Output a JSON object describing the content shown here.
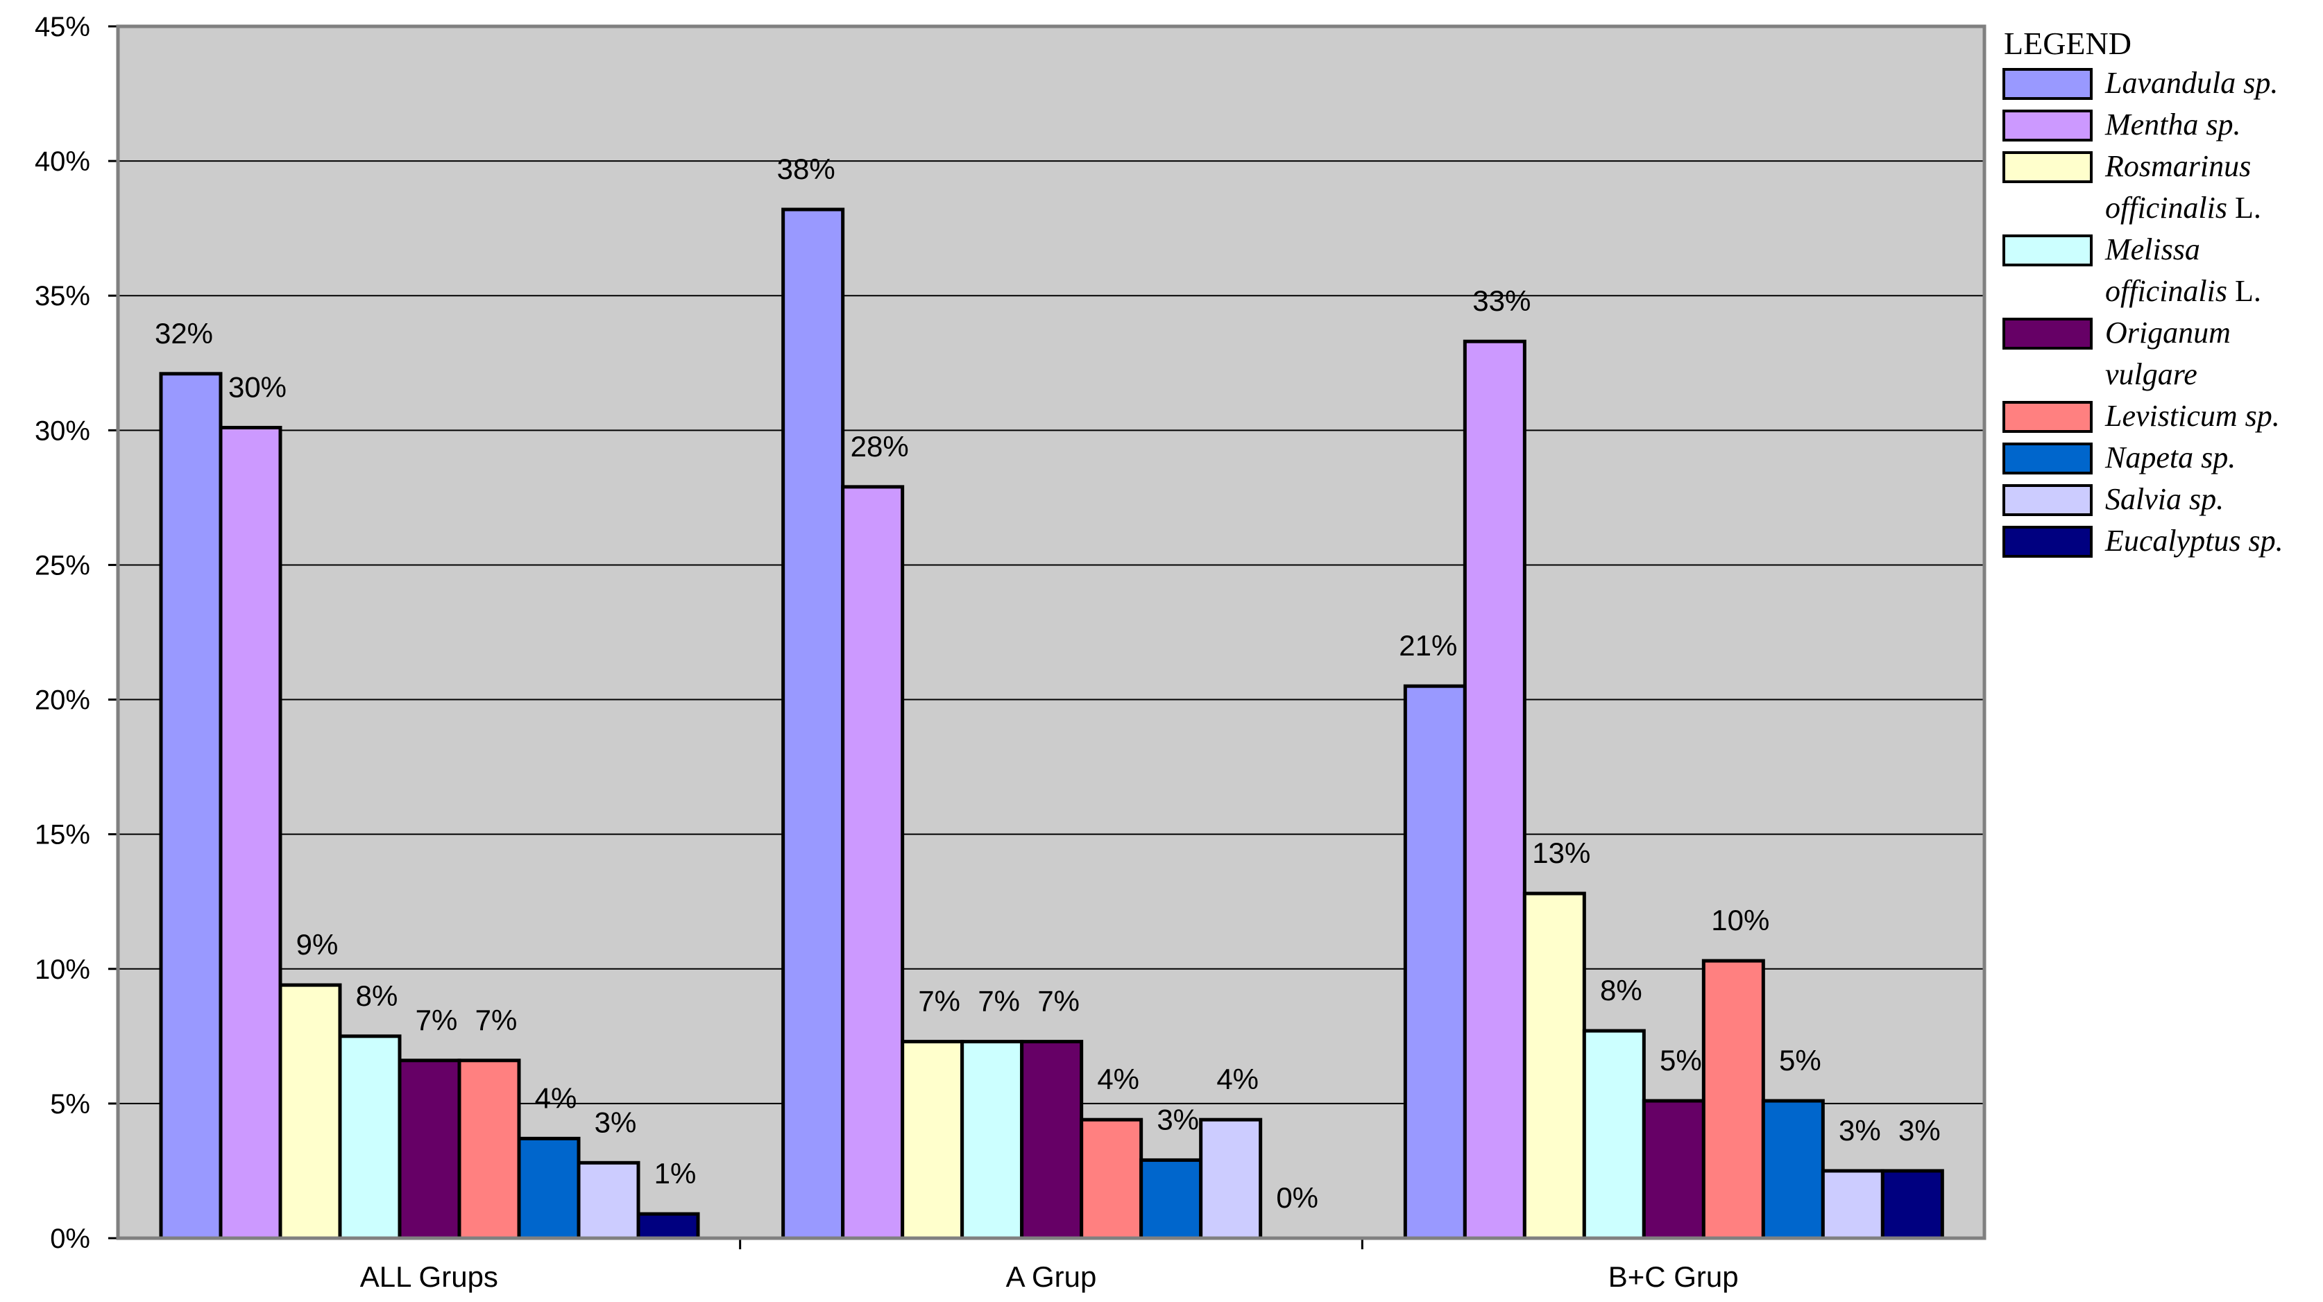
{
  "chart_data": {
    "type": "bar",
    "title": "",
    "xlabel": "",
    "ylabel": "",
    "ylim": [
      0,
      45
    ],
    "ytick_step": 5,
    "ytick_suffix": "%",
    "grid": true,
    "plot_background": "#cccccc",
    "legend_placement": "right",
    "legend_title": "LEGEND",
    "categories": [
      "ALL Grups",
      "A Grup",
      "B+C Grup"
    ],
    "series": [
      {
        "name": "Lavandula sp.",
        "name_italic": "Lavandula sp.",
        "name_suffix": "",
        "color": "#9999ff",
        "values": [
          32.1,
          38.2,
          20.5
        ],
        "labels": [
          "32%",
          "38%",
          "21%"
        ]
      },
      {
        "name": "Mentha sp.",
        "name_italic": "Mentha sp.",
        "name_suffix": "",
        "color": "#cc99ff",
        "values": [
          30.1,
          27.9,
          33.3
        ],
        "labels": [
          "30%",
          "28%",
          "33%"
        ]
      },
      {
        "name": "Rosmarinus officinalis L.",
        "name_italic": "Rosmarinus officinalis",
        "name_suffix": " L.",
        "color": "#ffffcc",
        "values": [
          9.4,
          7.3,
          12.8
        ],
        "labels": [
          "9%",
          "7%",
          "13%"
        ]
      },
      {
        "name": "Melissa officinalis L.",
        "name_italic": "Melissa officinalis",
        "name_suffix": " L.",
        "color": "#ccffff",
        "values": [
          7.5,
          7.3,
          7.7
        ],
        "labels": [
          "8%",
          "7%",
          "8%"
        ]
      },
      {
        "name": "Origanum vulgare",
        "name_italic": "Origanum vulgare",
        "name_suffix": "",
        "color": "#660066",
        "values": [
          6.6,
          7.3,
          5.1
        ],
        "labels": [
          "7%",
          "7%",
          "5%"
        ]
      },
      {
        "name": "Levisticum sp.",
        "name_italic": "Levisticum sp.",
        "name_suffix": "",
        "color": "#ff8080",
        "values": [
          6.6,
          4.4,
          10.3
        ],
        "labels": [
          "7%",
          "4%",
          "10%"
        ]
      },
      {
        "name": "Napeta sp.",
        "name_italic": "Napeta sp.",
        "name_suffix": "",
        "color": "#0066cc",
        "values": [
          3.7,
          2.9,
          5.1
        ],
        "labels": [
          "4%",
          "3%",
          "5%"
        ]
      },
      {
        "name": "Salvia sp.",
        "name_italic": "Salvia sp.",
        "name_suffix": "",
        "color": "#ccccff",
        "values": [
          2.8,
          4.4,
          2.5
        ],
        "labels": [
          "3%",
          "4%",
          "3%"
        ]
      },
      {
        "name": "Eucalyptus sp.",
        "name_italic": "Eucalyptus sp.",
        "name_suffix": "",
        "color": "#000080",
        "values": [
          0.9,
          0.0,
          2.5
        ],
        "labels": [
          "1%",
          "0%",
          "3%"
        ]
      }
    ]
  }
}
